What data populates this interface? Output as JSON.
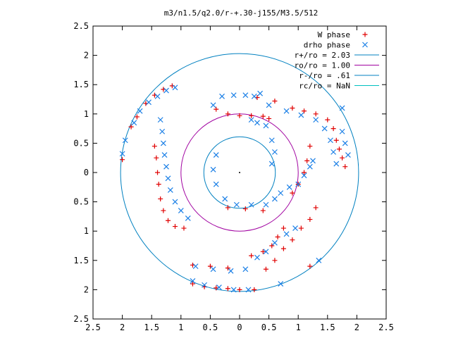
{
  "chart_data": {
    "type": "scatter",
    "title": "m3/n1.5/q2.0/r-+.30-j155/M3.5/512",
    "xlabel": "",
    "ylabel": "",
    "xlim": [
      -2.5,
      2.5
    ],
    "ylim": [
      -2.5,
      2.5
    ],
    "x_tick_values": [
      -2.5,
      -2,
      -1.5,
      -1,
      -0.5,
      0,
      0.5,
      1,
      1.5,
      2,
      2.5
    ],
    "x_tick_labels": [
      "2.5",
      "2",
      "1.5",
      "1",
      "0.5",
      "0",
      "0.5",
      "1",
      "1.5",
      "2",
      "2.5"
    ],
    "y_tick_values": [
      2.5,
      2,
      1.5,
      1,
      0.5,
      0,
      -0.5,
      -1,
      -1.5,
      -2,
      -2.5
    ],
    "y_tick_labels": [
      "2.5",
      "2",
      "1.5",
      "1",
      "0.5",
      "0",
      "0.5",
      "1",
      "1.5",
      "2",
      "2.5"
    ],
    "grid": false,
    "legend_position": "top-right",
    "center_dot": true,
    "circles": [
      {
        "name": "r+/ro = 2.03",
        "radius": 2.03,
        "color": "#0080c0"
      },
      {
        "name": "ro/ro = 1.00",
        "radius": 1.0,
        "color": "#a000a0"
      },
      {
        "name": "r-/ro = .61",
        "radius": 0.61,
        "color": "#0080c0"
      },
      {
        "name": "rc/ro = NaN",
        "radius": null,
        "color": "#00c0c0"
      }
    ],
    "series": [
      {
        "name": "W phase",
        "marker": "plus",
        "color": "#e00000",
        "points": [
          [
            -2.0,
            0.22
          ],
          [
            -1.85,
            0.78
          ],
          [
            -1.75,
            0.95
          ],
          [
            -1.6,
            1.18
          ],
          [
            -1.45,
            1.32
          ],
          [
            -1.3,
            1.42
          ],
          [
            -1.15,
            1.48
          ],
          [
            -1.45,
            0.45
          ],
          [
            -1.42,
            0.25
          ],
          [
            -1.4,
            0.0
          ],
          [
            -1.38,
            -0.2
          ],
          [
            -1.35,
            -0.45
          ],
          [
            -1.3,
            -0.65
          ],
          [
            -1.22,
            -0.82
          ],
          [
            -1.1,
            -0.92
          ],
          [
            -0.95,
            -0.95
          ],
          [
            -0.4,
            1.08
          ],
          [
            -0.2,
            1.0
          ],
          [
            0.0,
            0.97
          ],
          [
            0.2,
            0.97
          ],
          [
            0.4,
            0.96
          ],
          [
            0.5,
            0.92
          ],
          [
            0.3,
            1.28
          ],
          [
            0.6,
            1.22
          ],
          [
            0.9,
            1.1
          ],
          [
            1.1,
            1.05
          ],
          [
            1.3,
            1.0
          ],
          [
            1.5,
            0.9
          ],
          [
            1.6,
            0.75
          ],
          [
            1.65,
            0.55
          ],
          [
            1.7,
            0.4
          ],
          [
            1.75,
            0.25
          ],
          [
            1.8,
            0.1
          ],
          [
            1.2,
            0.45
          ],
          [
            1.15,
            0.2
          ],
          [
            1.1,
            0.0
          ],
          [
            1.0,
            -0.2
          ],
          [
            0.9,
            -0.35
          ],
          [
            -0.2,
            -0.6
          ],
          [
            0.1,
            -0.62
          ],
          [
            0.4,
            -0.65
          ],
          [
            0.75,
            -0.95
          ],
          [
            0.65,
            -1.1
          ],
          [
            0.55,
            -1.25
          ],
          [
            0.4,
            -1.35
          ],
          [
            0.2,
            -1.42
          ],
          [
            1.3,
            -0.6
          ],
          [
            1.2,
            -0.8
          ],
          [
            1.05,
            -0.95
          ],
          [
            0.9,
            -1.15
          ],
          [
            0.75,
            -1.3
          ],
          [
            0.6,
            -1.5
          ],
          [
            0.45,
            -1.65
          ],
          [
            -0.2,
            -1.63
          ],
          [
            -0.5,
            -1.6
          ],
          [
            -0.8,
            -1.58
          ],
          [
            -0.8,
            -1.9
          ],
          [
            -0.6,
            -1.95
          ],
          [
            -0.4,
            -1.97
          ],
          [
            -0.2,
            -1.98
          ],
          [
            0.0,
            -2.0
          ],
          [
            0.25,
            -2.0
          ],
          [
            1.2,
            -1.6
          ]
        ]
      },
      {
        "name": "drho phase",
        "marker": "x",
        "color": "#1a7fe6",
        "points": [
          [
            -2.0,
            0.32
          ],
          [
            -1.95,
            0.55
          ],
          [
            -1.8,
            0.85
          ],
          [
            -1.7,
            1.05
          ],
          [
            -1.55,
            1.2
          ],
          [
            -1.4,
            1.3
          ],
          [
            -1.25,
            1.4
          ],
          [
            -1.1,
            1.45
          ],
          [
            -1.35,
            0.9
          ],
          [
            -1.32,
            0.7
          ],
          [
            -1.3,
            0.5
          ],
          [
            -1.28,
            0.3
          ],
          [
            -1.25,
            0.1
          ],
          [
            -1.22,
            -0.1
          ],
          [
            -1.18,
            -0.3
          ],
          [
            -1.1,
            -0.5
          ],
          [
            -1.0,
            -0.65
          ],
          [
            -0.88,
            -0.78
          ],
          [
            -0.45,
            1.15
          ],
          [
            -0.3,
            1.3
          ],
          [
            -0.1,
            1.32
          ],
          [
            0.1,
            1.32
          ],
          [
            0.25,
            1.3
          ],
          [
            0.5,
            1.15
          ],
          [
            0.8,
            1.05
          ],
          [
            1.05,
            0.98
          ],
          [
            1.3,
            0.9
          ],
          [
            1.45,
            0.75
          ],
          [
            1.55,
            0.55
          ],
          [
            1.6,
            0.35
          ],
          [
            1.65,
            0.15
          ],
          [
            1.75,
            0.7
          ],
          [
            1.8,
            0.5
          ],
          [
            1.85,
            0.3
          ],
          [
            1.75,
            1.1
          ],
          [
            -0.4,
            0.3
          ],
          [
            -0.45,
            0.05
          ],
          [
            -0.4,
            -0.2
          ],
          [
            -0.25,
            -0.45
          ],
          [
            -0.05,
            -0.55
          ],
          [
            0.2,
            -0.55
          ],
          [
            0.45,
            -0.55
          ],
          [
            0.6,
            -0.45
          ],
          [
            0.7,
            -0.35
          ],
          [
            0.85,
            -0.25
          ],
          [
            1.0,
            -0.2
          ],
          [
            1.1,
            -0.05
          ],
          [
            1.2,
            0.1
          ],
          [
            1.25,
            0.2
          ],
          [
            0.35,
            1.35
          ],
          [
            0.2,
            0.9
          ],
          [
            0.3,
            0.85
          ],
          [
            0.45,
            0.8
          ],
          [
            0.55,
            0.55
          ],
          [
            0.6,
            0.35
          ],
          [
            0.55,
            0.15
          ],
          [
            0.8,
            -1.05
          ],
          [
            0.6,
            -1.2
          ],
          [
            0.45,
            -1.35
          ],
          [
            0.3,
            -1.45
          ],
          [
            -0.75,
            -1.6
          ],
          [
            -0.45,
            -1.65
          ],
          [
            -0.15,
            -1.68
          ],
          [
            0.1,
            -1.65
          ],
          [
            -0.8,
            -1.85
          ],
          [
            -0.6,
            -1.92
          ],
          [
            -0.35,
            -1.96
          ],
          [
            -0.1,
            -2.0
          ],
          [
            0.15,
            -2.0
          ],
          [
            0.7,
            -1.9
          ],
          [
            1.35,
            -1.5
          ],
          [
            0.95,
            -0.95
          ]
        ]
      }
    ]
  }
}
